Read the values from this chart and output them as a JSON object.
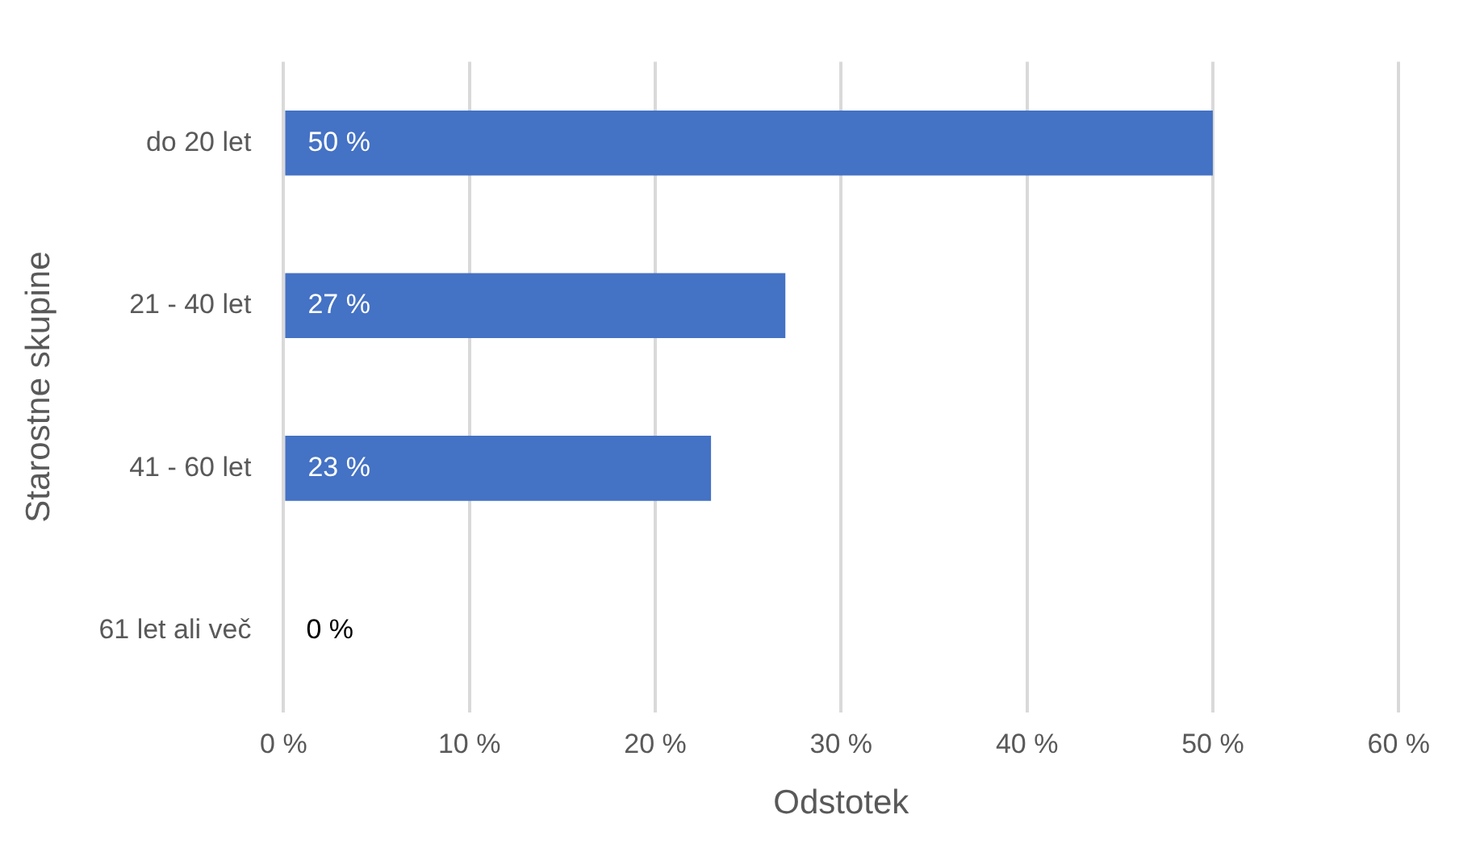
{
  "chart_data": {
    "type": "bar",
    "orientation": "horizontal",
    "xlabel": "Odstotek",
    "ylabel": "Starostne skupine",
    "categories": [
      "do 20 let",
      "21 - 40 let",
      "41 - 60 let",
      "61 let ali več"
    ],
    "values": [
      50,
      27,
      23,
      0
    ],
    "color": "#4472c4",
    "value_labels": [
      "50 %",
      "27 %",
      "23 %",
      "0 %"
    ],
    "xlim": [
      0,
      60
    ],
    "xticks": [
      {
        "value": 0,
        "label": "0 %"
      },
      {
        "value": 10,
        "label": "10 %"
      },
      {
        "value": 20,
        "label": "20 %"
      },
      {
        "value": 30,
        "label": "30 %"
      },
      {
        "value": 40,
        "label": "40 %"
      },
      {
        "value": 50,
        "label": "50 %"
      },
      {
        "value": 60,
        "label": "60 %"
      }
    ],
    "grid": "x",
    "legend": false
  }
}
